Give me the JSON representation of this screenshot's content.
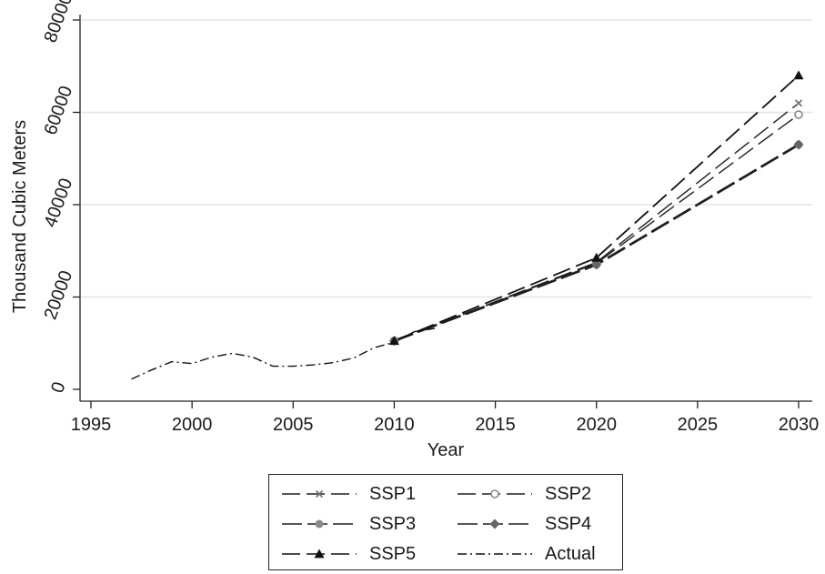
{
  "chart_data": {
    "type": "line",
    "xlabel": "Year",
    "ylabel": "Thousand Cubic Meters",
    "xlim": [
      1995,
      2030
    ],
    "ylim": [
      0,
      80000
    ],
    "xticks": [
      "1995",
      "2000",
      "2005",
      "2010",
      "2015",
      "2020",
      "2025",
      "2030"
    ],
    "yticks": [
      "0",
      "20000",
      "40000",
      "60000",
      "80000"
    ],
    "grid": "horizontal",
    "legend": "bottom, boxed, two columns",
    "series": [
      {
        "name": "SSP1",
        "x": [
          2010,
          2020,
          2030
        ],
        "values": [
          10500,
          27500,
          62000
        ],
        "marker": "x",
        "color": "#777777"
      },
      {
        "name": "SSP2",
        "x": [
          2010,
          2020,
          2030
        ],
        "values": [
          10500,
          27300,
          59500
        ],
        "marker": "hollow-circle",
        "color": "#888888"
      },
      {
        "name": "SSP3",
        "x": [
          2010,
          2020,
          2030
        ],
        "values": [
          10500,
          27000,
          53000
        ],
        "marker": "circle",
        "color": "#8a8a8a"
      },
      {
        "name": "SSP4",
        "x": [
          2010,
          2020,
          2030
        ],
        "values": [
          10500,
          27000,
          53000
        ],
        "marker": "diamond",
        "color": "#666666"
      },
      {
        "name": "SSP5",
        "x": [
          2010,
          2020,
          2030
        ],
        "values": [
          10500,
          28500,
          68000
        ],
        "marker": "triangle",
        "color": "#111111"
      },
      {
        "name": "Actual",
        "x": [
          1997,
          1998,
          1999,
          2000,
          2001,
          2002,
          2003,
          2004,
          2005,
          2006,
          2007,
          2008,
          2009,
          2010,
          2011,
          2012
        ],
        "values": [
          2200,
          4200,
          6000,
          5600,
          7000,
          7800,
          7000,
          5000,
          5000,
          5300,
          5800,
          6800,
          9000,
          10200,
          12500,
          13200
        ],
        "marker": "none",
        "color": "#111111"
      }
    ]
  }
}
